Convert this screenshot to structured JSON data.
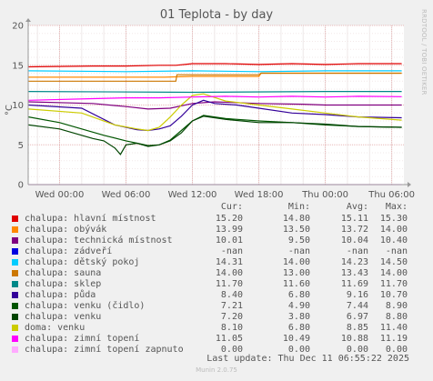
{
  "colors": {
    "background": "#f0f0f0",
    "plot_background": "#ffffff",
    "grid": "#e0c8c8",
    "axis": "#aaaaaa"
  },
  "watermark": "RRDTOOL / TOBI OETIKER",
  "footer": "Munin 2.0.75",
  "last_update": "Last update: Thu Dec 11 06:55:22 2025",
  "legend_headers": [
    "Cur:",
    "Min:",
    "Avg:",
    "Max:"
  ],
  "legend": [
    {
      "label": "chalupa: hlavní místnost",
      "color": "#e00000",
      "cur": "15.20",
      "min": "14.80",
      "avg": "15.11",
      "max": "15.30"
    },
    {
      "label": "chalupa: obývák",
      "color": "#ff8800",
      "cur": "13.99",
      "min": "13.50",
      "avg": "13.72",
      "max": "14.00"
    },
    {
      "label": "chalupa: technická místnost",
      "color": "#800080",
      "cur": "10.01",
      "min": "9.50",
      "avg": "10.04",
      "max": "10.40"
    },
    {
      "label": "chalupa: zádveří",
      "color": "#0000e0",
      "cur": "-nan",
      "min": "-nan",
      "avg": "-nan",
      "max": "-nan"
    },
    {
      "label": "chalupa: dětský pokoj",
      "color": "#00ccff",
      "cur": "14.31",
      "min": "14.00",
      "avg": "14.23",
      "max": "14.50"
    },
    {
      "label": "chalupa: sauna",
      "color": "#cc7700",
      "cur": "14.00",
      "min": "13.00",
      "avg": "13.43",
      "max": "14.00"
    },
    {
      "label": "chalupa: sklep",
      "color": "#008888",
      "cur": "11.70",
      "min": "11.60",
      "avg": "11.69",
      "max": "11.70"
    },
    {
      "label": "chalupa: půda",
      "color": "#330099",
      "cur": "8.40",
      "min": "6.80",
      "avg": "9.16",
      "max": "10.70"
    },
    {
      "label": "chalupa: venku (čidlo)",
      "color": "#005500",
      "cur": "7.21",
      "min": "4.90",
      "avg": "7.44",
      "max": "8.90"
    },
    {
      "label": "chalupa: venku",
      "color": "#004400",
      "cur": "7.20",
      "min": "3.80",
      "avg": "6.97",
      "max": "8.80"
    },
    {
      "label": "doma: venku",
      "color": "#cccc00",
      "cur": "8.10",
      "min": "6.80",
      "avg": "8.85",
      "max": "11.40"
    },
    {
      "label": "chalupa: zimní topení",
      "color": "#ff00ff",
      "cur": "11.05",
      "min": "10.49",
      "avg": "10.88",
      "max": "11.19"
    },
    {
      "label": "chalupa: zimní topení zapnuto",
      "color": "#ffaaff",
      "cur": "0.00",
      "min": "0.00",
      "avg": "0.00",
      "max": "0.00"
    }
  ],
  "chart_data": {
    "type": "line",
    "title": "01 Teplota - by day",
    "ylabel": "°C",
    "ylim": [
      0,
      20
    ],
    "yticks": [
      0,
      5,
      10,
      15,
      20
    ],
    "xlim": [
      "Wed 00:00 minus 2h50",
      "Thu 07:10"
    ],
    "xticks": [
      "Wed 00:00",
      "Wed 06:00",
      "Wed 12:00",
      "Wed 18:00",
      "Thu 00:00",
      "Thu 06:00"
    ],
    "grid": true,
    "series": [
      {
        "name": "chalupa: hlavní místnost",
        "color": "#e00000",
        "x": [
          -2.8,
          3,
          6,
          9,
          10.5,
          12,
          15,
          18,
          21,
          24,
          27,
          30.9
        ],
        "y": [
          14.8,
          14.9,
          14.9,
          15.0,
          15.0,
          15.2,
          15.2,
          15.1,
          15.2,
          15.1,
          15.2,
          15.2
        ]
      },
      {
        "name": "chalupa: obývák",
        "color": "#ff8800",
        "x": [
          -2.8,
          6,
          9.5,
          12,
          18,
          18.2,
          24,
          30.9
        ],
        "y": [
          13.5,
          13.5,
          13.5,
          13.6,
          13.6,
          14.0,
          14.0,
          14.0
        ]
      },
      {
        "name": "chalupa: technická místnost",
        "color": "#800080",
        "x": [
          -2.8,
          3,
          6,
          8,
          10,
          12,
          14,
          18,
          22,
          24,
          27,
          30.9
        ],
        "y": [
          10.4,
          10.2,
          9.8,
          9.5,
          9.6,
          10.2,
          10.4,
          10.2,
          10.1,
          10.0,
          10.0,
          10.0
        ]
      },
      {
        "name": "chalupa: dětský pokoj",
        "color": "#00ccff",
        "x": [
          -2.8,
          6,
          12,
          18,
          24,
          30.9
        ],
        "y": [
          14.3,
          14.2,
          14.3,
          14.2,
          14.3,
          14.3
        ]
      },
      {
        "name": "chalupa: sauna",
        "color": "#cc7700",
        "x": [
          -2.8,
          10.5,
          10.6,
          18,
          18.2,
          30.9
        ],
        "y": [
          13.0,
          13.0,
          13.8,
          13.8,
          14.0,
          14.0
        ]
      },
      {
        "name": "chalupa: sklep",
        "color": "#008888",
        "x": [
          -2.8,
          12,
          24,
          30.9
        ],
        "y": [
          11.7,
          11.6,
          11.7,
          11.7
        ]
      },
      {
        "name": "chalupa: půda",
        "color": "#330099",
        "x": [
          -2.8,
          2,
          5,
          7,
          8,
          9,
          10,
          11,
          12,
          13,
          14,
          16,
          18,
          21,
          24,
          27,
          30.9
        ],
        "y": [
          10.0,
          9.6,
          7.5,
          6.9,
          6.8,
          7.0,
          7.4,
          8.6,
          10.0,
          10.6,
          10.2,
          10.0,
          9.6,
          9.0,
          8.8,
          8.5,
          8.4
        ]
      },
      {
        "name": "chalupa: venku (čidlo)",
        "color": "#005500",
        "x": [
          -2.8,
          0,
          2,
          4,
          6,
          7,
          8,
          9,
          10,
          11,
          12,
          13,
          15,
          18,
          21,
          24,
          27,
          30.9
        ],
        "y": [
          8.5,
          7.8,
          7.0,
          6.2,
          5.5,
          5.2,
          4.9,
          5.0,
          5.6,
          6.8,
          8.0,
          8.7,
          8.3,
          8.0,
          7.8,
          7.5,
          7.3,
          7.2
        ]
      },
      {
        "name": "chalupa: venku",
        "color": "#004400",
        "x": [
          -2.8,
          0,
          2,
          3,
          4,
          5,
          5.5,
          6,
          7,
          8,
          9,
          10,
          11,
          12,
          13,
          15,
          18,
          21,
          24,
          27,
          30.9
        ],
        "y": [
          7.5,
          7.0,
          6.2,
          5.8,
          5.5,
          4.6,
          3.8,
          5.0,
          5.2,
          4.8,
          5.0,
          5.5,
          6.5,
          8.0,
          8.6,
          8.2,
          7.8,
          7.8,
          7.6,
          7.3,
          7.2
        ]
      },
      {
        "name": "doma: venku",
        "color": "#cccc00",
        "x": [
          -2.8,
          2,
          5,
          7,
          8,
          9,
          10,
          11,
          12,
          13,
          15,
          18,
          21,
          24,
          27,
          30.9
        ],
        "y": [
          9.5,
          9.0,
          7.5,
          7.0,
          6.8,
          7.2,
          8.5,
          10.0,
          11.2,
          11.4,
          10.5,
          10.0,
          9.5,
          9.0,
          8.5,
          8.1
        ]
      },
      {
        "name": "chalupa: zimní topení",
        "color": "#ff00ff",
        "x": [
          -2.8,
          3,
          6,
          9,
          12,
          15,
          18,
          21,
          24,
          27,
          30.9
        ],
        "y": [
          10.6,
          10.8,
          10.9,
          10.9,
          11.0,
          11.1,
          11.0,
          11.1,
          11.0,
          11.1,
          11.05
        ]
      },
      {
        "name": "chalupa: zimní topení zapnuto",
        "color": "#ffaaff",
        "x": [
          -2.8,
          30.9
        ],
        "y": [
          0.0,
          0.0
        ]
      }
    ]
  }
}
